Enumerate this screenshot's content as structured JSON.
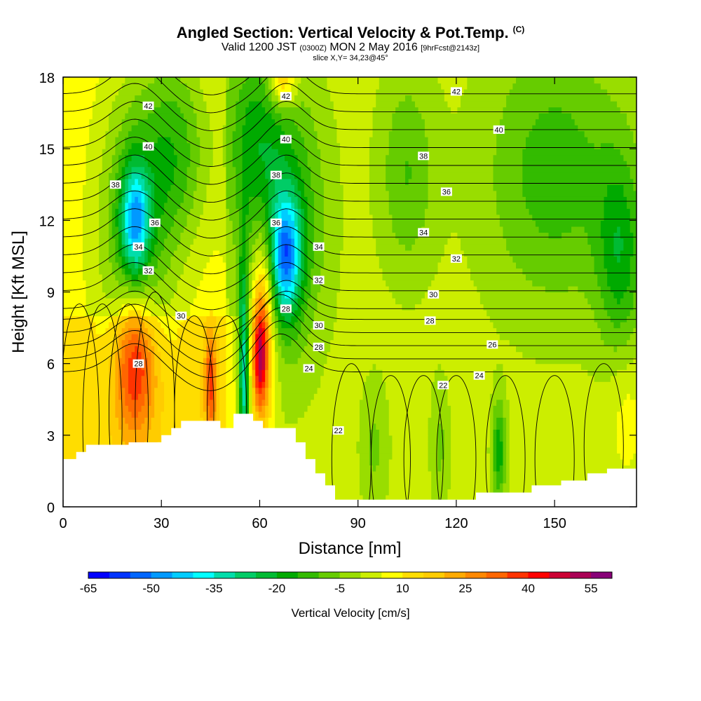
{
  "header": {
    "title": "Angled Section: Vertical Velocity & Pot.Temp.",
    "title_unit": "(C)",
    "valid_prefix": "Valid 1200 JST",
    "valid_utc": "(0300Z)",
    "valid_date": "MON 2 May 2016",
    "forecast": "[9hrFcst@2143z]",
    "slice": "slice X,Y= 34,23@45°"
  },
  "chart_data": {
    "type": "heatmap",
    "title": "Angled Section: Vertical Velocity & Pot.Temp. (C)",
    "xlabel": "Distance [nm]",
    "ylabel": "Height [Kft MSL]",
    "xlim": [
      0,
      175
    ],
    "ylim": [
      0,
      18
    ],
    "x_ticks": [
      "0",
      "30",
      "60",
      "90",
      "120",
      "150"
    ],
    "y_ticks": [
      "0",
      "3",
      "6",
      "9",
      "12",
      "15",
      "18"
    ],
    "colorbar": {
      "label": "Vertical Velocity [cm/s]",
      "tick_labels": [
        "-65",
        "-50",
        "-35",
        "-20",
        "-5",
        "10",
        "25",
        "40",
        "55"
      ],
      "levels": [
        -65,
        -60,
        -55,
        -50,
        -45,
        -40,
        -35,
        -30,
        -25,
        -20,
        -15,
        -10,
        -5,
        0,
        5,
        10,
        15,
        20,
        25,
        30,
        35,
        40,
        45,
        50,
        55,
        60
      ],
      "colors": [
        "#0000ff",
        "#0033ff",
        "#0066ff",
        "#0099ff",
        "#00ccff",
        "#00ffff",
        "#00ddaa",
        "#00cc66",
        "#00bb33",
        "#00aa00",
        "#33bb00",
        "#66cc00",
        "#99dd00",
        "#ccee00",
        "#ffff00",
        "#ffdd00",
        "#ffcc00",
        "#ffaa00",
        "#ff8800",
        "#ff6600",
        "#ff3300",
        "#ff0000",
        "#cc0033",
        "#aa0055",
        "#880077"
      ]
    },
    "vertical_velocity_features": [
      {
        "x": 22,
        "y": 12.0,
        "value": -50
      },
      {
        "x": 68,
        "y": 10.5,
        "value": -55
      },
      {
        "x": 22,
        "y": 5.5,
        "value": 40
      },
      {
        "x": 60,
        "y": 6.3,
        "value": 55
      },
      {
        "x": 55,
        "y": 5.5,
        "value": -35
      },
      {
        "x": 67,
        "y": 17.8,
        "value": 30
      },
      {
        "x": 133,
        "y": 2.5,
        "value": -25
      },
      {
        "x": 170,
        "y": 10.5,
        "value": -20
      },
      {
        "x": 45,
        "y": 5.5,
        "value": 30
      }
    ],
    "pot_temp_contours": {
      "unit": "C",
      "labels": [
        {
          "value": "42",
          "x": 26,
          "y": 16.8
        },
        {
          "value": "40",
          "x": 26,
          "y": 15.1
        },
        {
          "value": "38",
          "x": 16,
          "y": 13.5
        },
        {
          "value": "36",
          "x": 28,
          "y": 11.9
        },
        {
          "value": "34",
          "x": 23,
          "y": 10.9
        },
        {
          "value": "32",
          "x": 26,
          "y": 9.9
        },
        {
          "value": "30",
          "x": 36,
          "y": 8.0
        },
        {
          "value": "28",
          "x": 23,
          "y": 6.0
        },
        {
          "value": "42",
          "x": 68,
          "y": 17.2
        },
        {
          "value": "40",
          "x": 68,
          "y": 15.4
        },
        {
          "value": "38",
          "x": 65,
          "y": 13.9
        },
        {
          "value": "36",
          "x": 65,
          "y": 11.9
        },
        {
          "value": "34",
          "x": 78,
          "y": 10.9
        },
        {
          "value": "32",
          "x": 78,
          "y": 9.5
        },
        {
          "value": "28",
          "x": 68,
          "y": 8.3
        },
        {
          "value": "30",
          "x": 78,
          "y": 7.6
        },
        {
          "value": "28",
          "x": 78,
          "y": 6.7
        },
        {
          "value": "24",
          "x": 75,
          "y": 5.8
        },
        {
          "value": "22",
          "x": 84,
          "y": 3.2
        },
        {
          "value": "42",
          "x": 120,
          "y": 17.4
        },
        {
          "value": "40",
          "x": 133,
          "y": 15.8
        },
        {
          "value": "38",
          "x": 110,
          "y": 14.7
        },
        {
          "value": "36",
          "x": 117,
          "y": 13.2
        },
        {
          "value": "34",
          "x": 110,
          "y": 11.5
        },
        {
          "value": "32",
          "x": 120,
          "y": 10.4
        },
        {
          "value": "30",
          "x": 113,
          "y": 8.9
        },
        {
          "value": "28",
          "x": 112,
          "y": 7.8
        },
        {
          "value": "26",
          "x": 131,
          "y": 6.8
        },
        {
          "value": "24",
          "x": 127,
          "y": 5.5
        },
        {
          "value": "22",
          "x": 116,
          "y": 5.1
        }
      ]
    },
    "terrain": [
      [
        0,
        2
      ],
      [
        4,
        2
      ],
      [
        4,
        2.3
      ],
      [
        7,
        2.3
      ],
      [
        7,
        2.6
      ],
      [
        20,
        2.6
      ],
      [
        20,
        2.7
      ],
      [
        30,
        2.7
      ],
      [
        30,
        3.0
      ],
      [
        33,
        3.0
      ],
      [
        33,
        3.3
      ],
      [
        36,
        3.3
      ],
      [
        36,
        3.6
      ],
      [
        48,
        3.6
      ],
      [
        48,
        3.3
      ],
      [
        52,
        3.3
      ],
      [
        52,
        3.9
      ],
      [
        58,
        3.9
      ],
      [
        58,
        3.6
      ],
      [
        61,
        3.6
      ],
      [
        61,
        3.3
      ],
      [
        71,
        3.3
      ],
      [
        71,
        2.7
      ],
      [
        74,
        2.7
      ],
      [
        74,
        2.0
      ],
      [
        77,
        2.0
      ],
      [
        77,
        1.4
      ],
      [
        80,
        1.4
      ],
      [
        80,
        0.9
      ],
      [
        83,
        0.9
      ],
      [
        83,
        0.3
      ],
      [
        126,
        0.3
      ],
      [
        126,
        0.6
      ],
      [
        143,
        0.6
      ],
      [
        143,
        0.9
      ],
      [
        152,
        0.9
      ],
      [
        152,
        1.1
      ],
      [
        160,
        1.1
      ],
      [
        160,
        1.4
      ],
      [
        166,
        1.4
      ],
      [
        166,
        1.6
      ],
      [
        175,
        1.6
      ]
    ]
  }
}
